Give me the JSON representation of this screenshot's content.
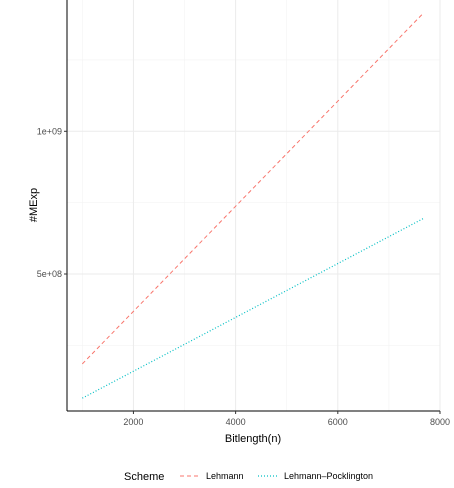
{
  "chart_data": {
    "type": "line",
    "title": "",
    "xlabel": "Bitlength(n)",
    "ylabel": "#MExp",
    "xlim": [
      700,
      8000
    ],
    "ylim": [
      20000000,
      1460000000
    ],
    "x_ticks": [
      2000,
      4000,
      6000,
      8000
    ],
    "x_tick_labels": [
      "2000",
      "4000",
      "6000",
      "8000"
    ],
    "y_ticks": [
      500000000,
      1000000000
    ],
    "y_tick_labels": [
      "5e+08",
      "1e+09"
    ],
    "grid": true,
    "legend": {
      "title": "Scheme",
      "placement": "bottom"
    },
    "series": [
      {
        "name": "Lehmann",
        "color": "#F8766D",
        "line_style": "dashed",
        "x": [
          1000,
          7680
        ],
        "y": [
          185000000,
          1415000000
        ]
      },
      {
        "name": "Lehmann–Pocklington",
        "color": "#00BFC4",
        "line_style": "dotted",
        "x": [
          1000,
          7680
        ],
        "y": [
          65000000,
          695000000
        ]
      }
    ]
  }
}
